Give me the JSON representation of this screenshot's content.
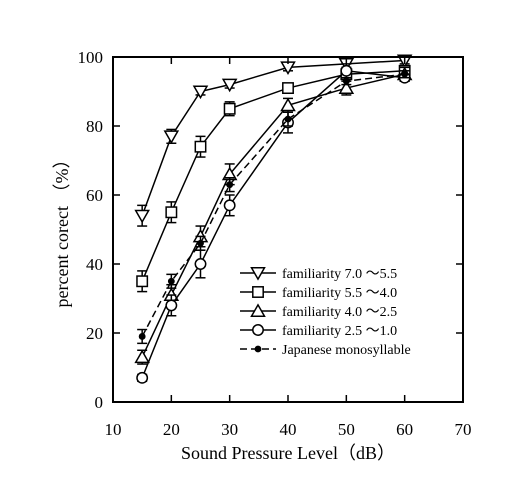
{
  "chart_data": {
    "type": "line",
    "xlabel": "Sound Pressure Level（dB）",
    "ylabel": "percent corect （%）",
    "xlim": [
      10,
      70
    ],
    "ylim": [
      0,
      100
    ],
    "xticks": [
      10,
      20,
      30,
      40,
      50,
      60,
      70
    ],
    "yticks": [
      0,
      20,
      40,
      60,
      80,
      100
    ],
    "legend_position": "bottom-right",
    "grid": false,
    "x": [
      15,
      20,
      25,
      30,
      40,
      50,
      60
    ],
    "series": [
      {
        "name": "familiarity 7.0 ～5.5",
        "marker": "triangle-down",
        "line": "solid",
        "values": [
          54,
          77,
          90,
          92,
          97,
          98,
          99
        ],
        "errors": [
          3,
          2,
          1,
          1,
          1,
          1,
          1
        ]
      },
      {
        "name": "familiarity 5.5 ～4.0",
        "marker": "square",
        "line": "solid",
        "values": [
          35,
          55,
          74,
          85,
          91,
          95,
          96
        ],
        "errors": [
          3,
          3,
          3,
          2,
          1,
          1,
          1
        ]
      },
      {
        "name": "familiarity 4.0 ～2.5",
        "marker": "triangle-up",
        "line": "solid",
        "values": [
          13,
          31,
          48,
          66,
          86,
          91,
          95
        ],
        "errors": [
          2,
          3,
          3,
          3,
          2,
          2,
          2
        ]
      },
      {
        "name": "familiarity 2.5 ～1.0",
        "marker": "circle",
        "line": "solid",
        "values": [
          7,
          28,
          40,
          57,
          81,
          96,
          94
        ],
        "errors": [
          1,
          3,
          4,
          3,
          3,
          2,
          1
        ]
      },
      {
        "name": "Japanese monosyllable",
        "marker": "dot",
        "line": "dashed",
        "values": [
          19,
          35,
          46,
          63,
          82,
          93,
          95
        ],
        "errors": [
          2,
          2,
          2,
          2,
          2,
          1,
          1
        ]
      }
    ]
  }
}
